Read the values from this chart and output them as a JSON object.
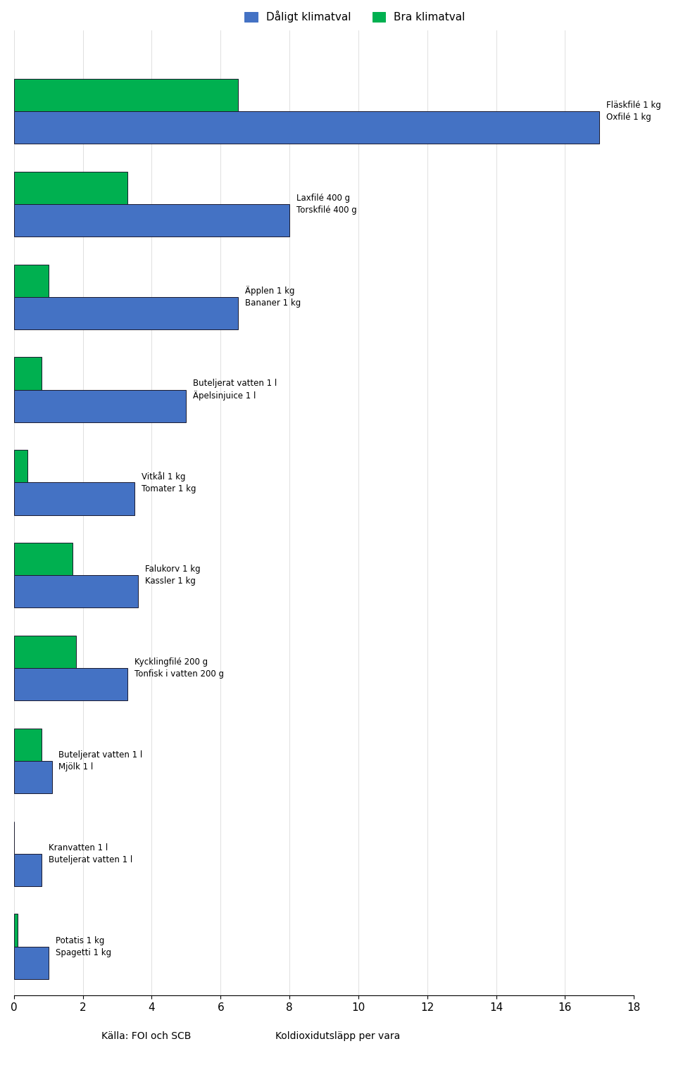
{
  "legend_bad": "Dåligt klimatval",
  "legend_good": "Bra klimatval",
  "xlabel": "Koldioxidutsläpp per vara",
  "source": "Källa: FOI och SCB",
  "xlim": [
    0,
    18
  ],
  "xticks": [
    0,
    2,
    4,
    6,
    8,
    10,
    12,
    14,
    16,
    18
  ],
  "color_bad": "#4472C4",
  "color_good": "#00B050",
  "pairs": [
    {
      "label_good": "Potatis 1 kg",
      "label_bad": "Spagetti 1 kg",
      "val_good": 0.1,
      "val_bad": 1.0
    },
    {
      "label_good": "Kranvatten 1 l",
      "label_bad": "Buteljerat vatten 1 l",
      "val_good": 0.0,
      "val_bad": 0.8
    },
    {
      "label_good": "Buteljerat vatten 1 l",
      "label_bad": "Mjölk 1 l",
      "val_good": 0.8,
      "val_bad": 1.1
    },
    {
      "label_good": "Kycklingfilé 200 g",
      "label_bad": "Tonfisk i vatten 200 g",
      "val_good": 1.8,
      "val_bad": 3.3
    },
    {
      "label_good": "Falukorv 1 kg",
      "label_bad": "Kassler 1 kg",
      "val_good": 1.7,
      "val_bad": 3.6
    },
    {
      "label_good": "Vitkål 1 kg",
      "label_bad": "Tomater 1 kg",
      "val_good": 0.4,
      "val_bad": 3.5
    },
    {
      "label_good": "Buteljerat vatten 1 l",
      "label_bad": "Äpelsinjuice 1 l",
      "val_good": 0.8,
      "val_bad": 5.0
    },
    {
      "label_good": "Äpplen 1 kg",
      "label_bad": "Bananer 1 kg",
      "val_good": 1.0,
      "val_bad": 6.5
    },
    {
      "label_good": "Laxfilé 400 g",
      "label_bad": "Torskfilé 400 g",
      "val_good": 3.3,
      "val_bad": 8.0
    },
    {
      "label_good": "Fläskfilé 1 kg",
      "label_bad": "Oxfilé 1 kg",
      "val_good": 6.5,
      "val_bad": 17.0
    }
  ]
}
